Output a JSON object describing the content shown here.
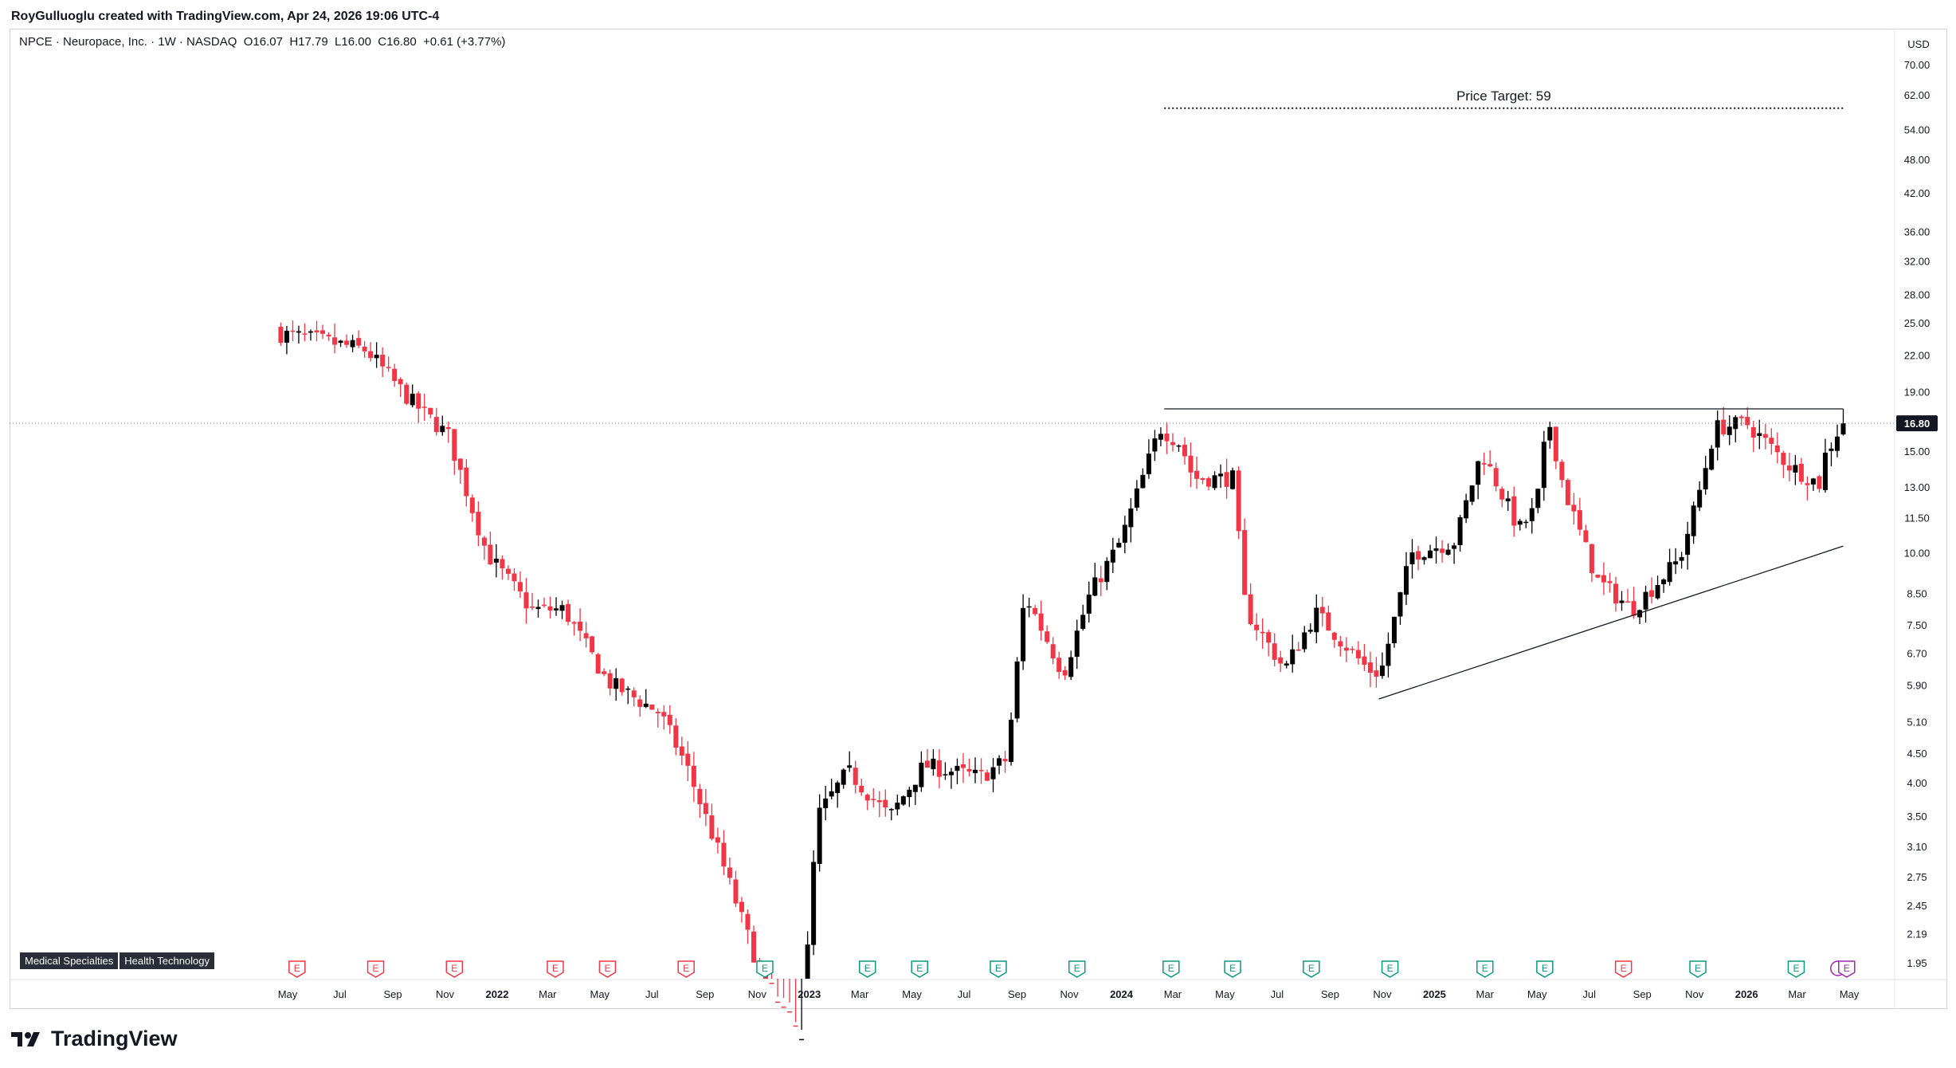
{
  "header": {
    "credit": "RoyGulluoglu created with TradingView.com, Apr 24, 2026 19:06 UTC-4"
  },
  "symbol": {
    "name": "NPCE · Neuropace, Inc. · 1W · NASDAQ",
    "open_label": "O",
    "open": "16.07",
    "high_label": "H",
    "high": "17.79",
    "low_label": "L",
    "low": "16.00",
    "close_label": "C",
    "close": "16.80",
    "change": "+0.61 (+3.77%)"
  },
  "tags": [
    "Medical Specialties",
    "Health Technology"
  ],
  "logo": {
    "text": "TradingView"
  },
  "colors": {
    "up": "#000000",
    "down": "#f23645",
    "earnings_up": "#089981",
    "earnings_down": "#f23645",
    "current_price_bg": "#131722",
    "dividend": "#9c27b0"
  },
  "chart_data": {
    "type": "candlestick",
    "scale": "log",
    "currency": "USD",
    "ylim": [
      1.8,
      78
    ],
    "y_ticks": [
      "70.00",
      "62.00",
      "54.00",
      "48.00",
      "42.00",
      "36.00",
      "32.00",
      "28.00",
      "25.00",
      "22.00",
      "19.00",
      "15.00",
      "13.00",
      "11.50",
      "10.00",
      "8.50",
      "7.50",
      "6.70",
      "5.90",
      "5.10",
      "4.50",
      "4.00",
      "3.50",
      "3.10",
      "2.75",
      "2.45",
      "2.19",
      "1.95"
    ],
    "current_price": "16.80",
    "x_labels": [
      {
        "label": "May",
        "date": "2021-05-01",
        "bold": false
      },
      {
        "label": "Jul",
        "date": "2021-07-01",
        "bold": false
      },
      {
        "label": "Sep",
        "date": "2021-09-01",
        "bold": false
      },
      {
        "label": "Nov",
        "date": "2021-11-01",
        "bold": false
      },
      {
        "label": "2022",
        "date": "2022-01-01",
        "bold": true
      },
      {
        "label": "Mar",
        "date": "2022-03-01",
        "bold": false
      },
      {
        "label": "May",
        "date": "2022-05-01",
        "bold": false
      },
      {
        "label": "Jul",
        "date": "2022-07-01",
        "bold": false
      },
      {
        "label": "Sep",
        "date": "2022-09-01",
        "bold": false
      },
      {
        "label": "Nov",
        "date": "2022-11-01",
        "bold": false
      },
      {
        "label": "2023",
        "date": "2023-01-01",
        "bold": true
      },
      {
        "label": "Mar",
        "date": "2023-03-01",
        "bold": false
      },
      {
        "label": "May",
        "date": "2023-05-01",
        "bold": false
      },
      {
        "label": "Jul",
        "date": "2023-07-01",
        "bold": false
      },
      {
        "label": "Sep",
        "date": "2023-09-01",
        "bold": false
      },
      {
        "label": "Nov",
        "date": "2023-11-01",
        "bold": false
      },
      {
        "label": "2024",
        "date": "2024-01-01",
        "bold": true
      },
      {
        "label": "Mar",
        "date": "2024-03-01",
        "bold": false
      },
      {
        "label": "May",
        "date": "2024-05-01",
        "bold": false
      },
      {
        "label": "Jul",
        "date": "2024-07-01",
        "bold": false
      },
      {
        "label": "Sep",
        "date": "2024-09-01",
        "bold": false
      },
      {
        "label": "Nov",
        "date": "2024-11-01",
        "bold": false
      },
      {
        "label": "2025",
        "date": "2025-01-01",
        "bold": true
      },
      {
        "label": "Mar",
        "date": "2025-03-01",
        "bold": false
      },
      {
        "label": "May",
        "date": "2025-05-01",
        "bold": false
      },
      {
        "label": "Jul",
        "date": "2025-07-01",
        "bold": false
      },
      {
        "label": "Sep",
        "date": "2025-09-01",
        "bold": false
      },
      {
        "label": "Nov",
        "date": "2025-11-01",
        "bold": false
      },
      {
        "label": "2026",
        "date": "2026-01-01",
        "bold": true
      },
      {
        "label": "Mar",
        "date": "2026-03-01",
        "bold": false
      },
      {
        "label": "May",
        "date": "2026-05-01",
        "bold": false
      }
    ],
    "weekly_close_keypoints": [
      {
        "date": "2021-04-23",
        "close": 24.0
      },
      {
        "date": "2021-06-01",
        "close": 23.5
      },
      {
        "date": "2021-08-01",
        "close": 22.5
      },
      {
        "date": "2021-09-20",
        "close": 18.5
      },
      {
        "date": "2021-11-05",
        "close": 16.0
      },
      {
        "date": "2021-12-20",
        "close": 10.0
      },
      {
        "date": "2022-02-10",
        "close": 8.0
      },
      {
        "date": "2022-03-20",
        "close": 8.0
      },
      {
        "date": "2022-05-10",
        "close": 6.0
      },
      {
        "date": "2022-07-10",
        "close": 5.3
      },
      {
        "date": "2022-08-10",
        "close": 4.3
      },
      {
        "date": "2022-09-15",
        "close": 3.1
      },
      {
        "date": "2022-11-15",
        "close": 1.7
      },
      {
        "date": "2022-12-22",
        "close": 1.4
      },
      {
        "date": "2023-01-10",
        "close": 3.5
      },
      {
        "date": "2023-02-15",
        "close": 4.2
      },
      {
        "date": "2023-04-05",
        "close": 3.5
      },
      {
        "date": "2023-05-15",
        "close": 4.3
      },
      {
        "date": "2023-07-20",
        "close": 4.1
      },
      {
        "date": "2023-08-20",
        "close": 4.4
      },
      {
        "date": "2023-09-10",
        "close": 8.5
      },
      {
        "date": "2023-10-25",
        "close": 6.2
      },
      {
        "date": "2023-11-25",
        "close": 8.5
      },
      {
        "date": "2023-12-31",
        "close": 10.5
      },
      {
        "date": "2024-02-15",
        "close": 16.5
      },
      {
        "date": "2024-03-10",
        "close": 15.5
      },
      {
        "date": "2024-03-25",
        "close": 13.5
      },
      {
        "date": "2024-05-10",
        "close": 13.5
      },
      {
        "date": "2024-05-25",
        "close": 8.0
      },
      {
        "date": "2024-07-10",
        "close": 6.3
      },
      {
        "date": "2024-08-15",
        "close": 7.9
      },
      {
        "date": "2024-10-15",
        "close": 6.3
      },
      {
        "date": "2024-10-30",
        "close": 6.2
      },
      {
        "date": "2024-12-05",
        "close": 10.0
      },
      {
        "date": "2025-01-25",
        "close": 10.5
      },
      {
        "date": "2025-02-25",
        "close": 15.0
      },
      {
        "date": "2025-04-10",
        "close": 11.0
      },
      {
        "date": "2025-04-30",
        "close": 12.0
      },
      {
        "date": "2025-05-14",
        "close": 17.2
      },
      {
        "date": "2025-06-01",
        "close": 13.0
      },
      {
        "date": "2025-07-10",
        "close": 9.0
      },
      {
        "date": "2025-08-20",
        "close": 8.0
      },
      {
        "date": "2025-10-15",
        "close": 9.8
      },
      {
        "date": "2025-11-05",
        "close": 12.5
      },
      {
        "date": "2025-11-25",
        "close": 16.5
      },
      {
        "date": "2026-01-01",
        "close": 16.8
      },
      {
        "date": "2026-02-20",
        "close": 14.2
      },
      {
        "date": "2026-03-27",
        "close": 13.2
      },
      {
        "date": "2026-04-03",
        "close": 14.8
      },
      {
        "date": "2026-04-17",
        "close": 16.2
      },
      {
        "date": "2026-04-24",
        "close": 16.8
      }
    ],
    "last_candle": {
      "date": "2026-04-24",
      "open": 16.07,
      "high": 17.79,
      "low": 16.0,
      "close": 16.8
    },
    "price_target": {
      "label": "Price Target: 59",
      "value": 59,
      "from": "2024-02-20",
      "to": "2026-04-24"
    },
    "resistance_line": {
      "value": 17.8,
      "from": "2024-02-20",
      "to": "2026-04-24"
    },
    "support_trendline": {
      "from": {
        "date": "2024-10-28",
        "value": 5.6
      },
      "to": {
        "date": "2026-04-24",
        "value": 10.3
      }
    },
    "earnings_markers": [
      {
        "date": "2021-05-12",
        "type": "down",
        "label": "E"
      },
      {
        "date": "2021-08-12",
        "type": "down",
        "label": "E"
      },
      {
        "date": "2021-11-12",
        "type": "down",
        "label": "E"
      },
      {
        "date": "2022-03-10",
        "type": "down",
        "label": "E"
      },
      {
        "date": "2022-05-10",
        "type": "down",
        "label": "E"
      },
      {
        "date": "2022-08-10",
        "type": "down",
        "label": "E"
      },
      {
        "date": "2022-11-10",
        "type": "up",
        "label": "E"
      },
      {
        "date": "2023-03-10",
        "type": "up",
        "label": "E"
      },
      {
        "date": "2023-05-10",
        "type": "up",
        "label": "E"
      },
      {
        "date": "2023-08-10",
        "type": "up",
        "label": "E"
      },
      {
        "date": "2023-11-10",
        "type": "up",
        "label": "E"
      },
      {
        "date": "2024-02-28",
        "type": "up",
        "label": "E"
      },
      {
        "date": "2024-05-10",
        "type": "up",
        "label": "E"
      },
      {
        "date": "2024-08-10",
        "type": "up",
        "label": "E"
      },
      {
        "date": "2024-11-10",
        "type": "up",
        "label": "E"
      },
      {
        "date": "2025-03-01",
        "type": "up",
        "label": "E"
      },
      {
        "date": "2025-05-10",
        "type": "up",
        "label": "E"
      },
      {
        "date": "2025-08-10",
        "type": "down",
        "label": "E"
      },
      {
        "date": "2025-11-05",
        "type": "up",
        "label": "E"
      },
      {
        "date": "2026-02-28",
        "type": "up",
        "label": "E"
      },
      {
        "date": "2026-04-28",
        "type": "dividend-earnings",
        "label": "E"
      }
    ]
  }
}
